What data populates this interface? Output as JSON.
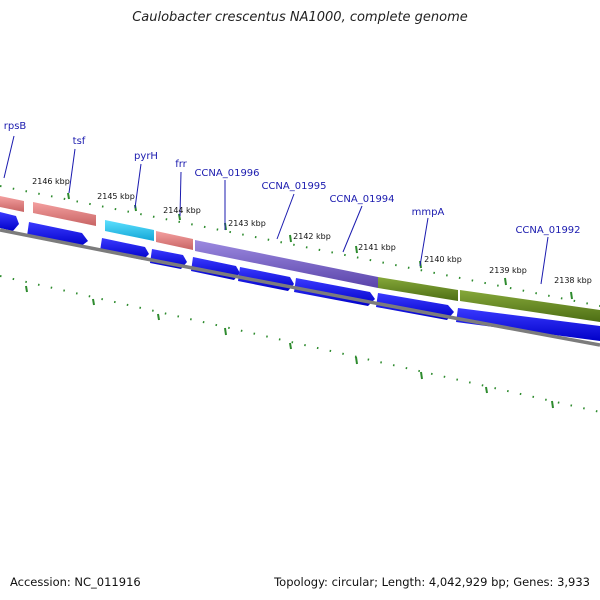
{
  "map": {
    "title": "Caulobacter crescentus NA1000, complete genome",
    "accession": "Accession: NC_011916",
    "summary": "Topology: circular; Length: 4,042,929 bp; Genes: 3,933"
  },
  "positions": [
    {
      "label": "2146 kbp"
    },
    {
      "label": "2145 kbp"
    },
    {
      "label": "2144 kbp"
    },
    {
      "label": "2143 kbp"
    },
    {
      "label": "2142 kbp"
    },
    {
      "label": "2141 kbp"
    },
    {
      "label": "2140 kbp"
    },
    {
      "label": "2139 kbp"
    },
    {
      "label": "2138 kbp"
    }
  ],
  "genes": [
    {
      "name": "rpsB"
    },
    {
      "name": "tsf"
    },
    {
      "name": "pyrH"
    },
    {
      "name": "frr"
    },
    {
      "name": "CCNA_01996"
    },
    {
      "name": "CCNA_01995"
    },
    {
      "name": "CCNA_01994"
    },
    {
      "name": "mmpA"
    },
    {
      "name": "CCNA_01992"
    }
  ],
  "colors": {
    "cds_arrow": "#0000ee",
    "rrna_like": "#e98585",
    "pyrh": "#1ec8f0",
    "purple_band": "#7a64cc",
    "green_band": "#6a8e23",
    "backbone": "#808080",
    "tick": "#2e8b2e",
    "label": "#1b1baf"
  }
}
